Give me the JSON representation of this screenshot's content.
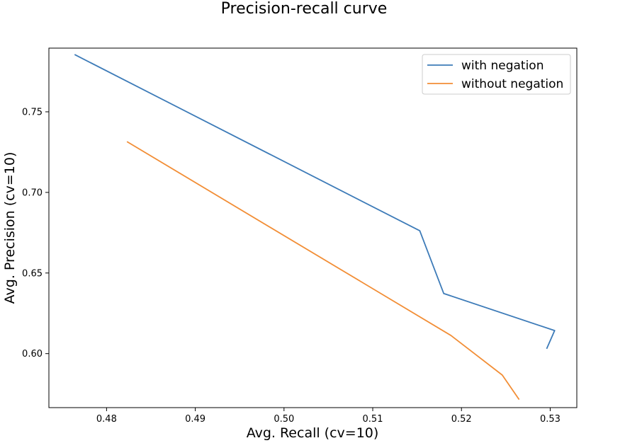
{
  "chart_data": {
    "type": "line",
    "title": "Precision-recall curve",
    "xlabel": "Avg. Recall (cv=10)",
    "ylabel": "Avg. Precision (cv=10)",
    "xlim": [
      0.4735,
      0.533
    ],
    "ylim": [
      0.5665,
      0.7895
    ],
    "xticks": [
      0.48,
      0.49,
      0.5,
      0.51,
      0.52,
      0.53
    ],
    "xtick_labels": [
      "0.48",
      "0.49",
      "0.50",
      "0.51",
      "0.52",
      "0.53"
    ],
    "yticks": [
      0.6,
      0.65,
      0.7,
      0.75
    ],
    "ytick_labels": [
      "0.60",
      "0.65",
      "0.70",
      "0.75"
    ],
    "grid": false,
    "legend_position": "top-right",
    "series": [
      {
        "name": "with negation",
        "color": "#3d7bb8",
        "x": [
          0.4764,
          0.5153,
          0.518,
          0.5305,
          0.5296
        ],
        "y": [
          0.7855,
          0.6762,
          0.6373,
          0.6143,
          0.603
        ]
      },
      {
        "name": "without negation",
        "color": "#f28e36",
        "x": [
          0.4823,
          0.5188,
          0.5246,
          0.5265
        ],
        "y": [
          0.7315,
          0.6113,
          0.5867,
          0.5715
        ]
      }
    ]
  }
}
